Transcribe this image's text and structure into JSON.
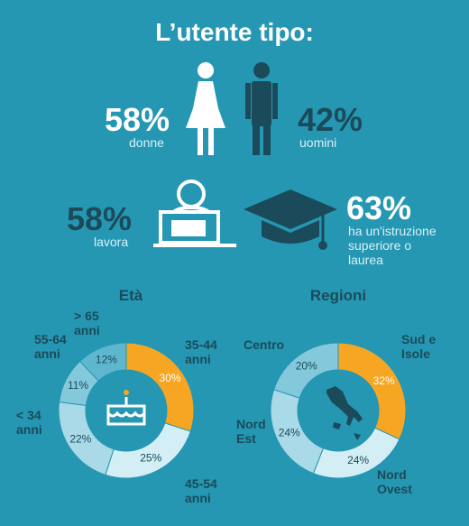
{
  "title": "L’utente tipo:",
  "stats": [
    {
      "value": "58%",
      "label": "donne"
    },
    {
      "value": "42%",
      "label": "uomini"
    },
    {
      "value": "58%",
      "label": "lavora"
    },
    {
      "value": "63%",
      "label": "ha un'istruzione superiore o laurea"
    }
  ],
  "chart_data": [
    {
      "type": "pie",
      "title": "Età",
      "categories": [
        "35-44 anni",
        "45-54 anni",
        "< 34 anni",
        "55-64 anni",
        "> 65 anni"
      ],
      "values": [
        30,
        25,
        22,
        11,
        12
      ],
      "value_labels": [
        "30%",
        "25%",
        "22%",
        "11%",
        "12%"
      ],
      "colors": [
        "#f6a623",
        "#d4eef5",
        "#aad9e7",
        "#84c8dc",
        "#5fb6cf"
      ]
    },
    {
      "type": "pie",
      "title": "Regioni",
      "categories": [
        "Sud e Isole",
        "Nord Ovest",
        "Nord Est",
        "Centro"
      ],
      "values": [
        32,
        24,
        24,
        20
      ],
      "value_labels": [
        "32%",
        "24%",
        "24%",
        "20%"
      ],
      "colors": [
        "#f6a623",
        "#d4eef5",
        "#aad9e7",
        "#84c8dc"
      ]
    }
  ]
}
